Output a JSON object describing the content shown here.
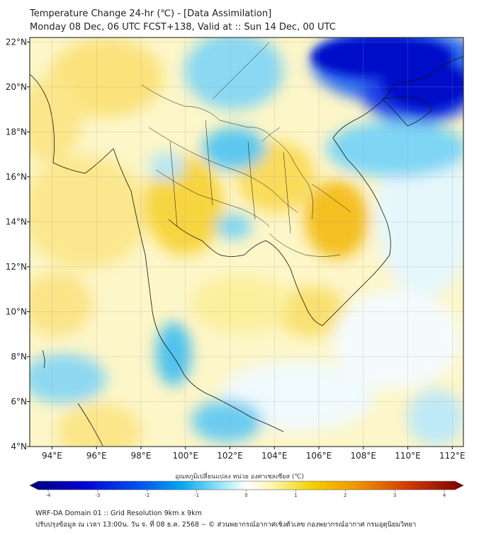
{
  "title": {
    "line1": "Temperature Change 24-hr (℃) - [Data Assimilation]",
    "line2": "Monday 08 Dec, 06 UTC FCST+138, Valid at :: Sun 14 Dec, 00 UTC"
  },
  "map": {
    "lon_range": [
      93,
      112.5
    ],
    "lat_range": [
      4,
      22.2
    ],
    "lon_ticks": [
      "94°E",
      "96°E",
      "98°E",
      "100°E",
      "102°E",
      "104°E",
      "106°E",
      "108°E",
      "110°E",
      "112°E"
    ],
    "lat_ticks": [
      "22°N",
      "20°N",
      "18°N",
      "16°N",
      "14°N",
      "12°N",
      "10°N",
      "8°N",
      "6°N",
      "4°N"
    ],
    "grid": true
  },
  "colorbar": {
    "label": "อุณหภูมิเปลี่ยนแปลง หน่วย องศาเซลเซียส (℃)",
    "ticks": [
      "-4",
      "-3",
      "-2",
      "-1",
      "0",
      "1",
      "2",
      "3",
      "4"
    ],
    "colors": [
      "#00007a",
      "#0000d0",
      "#0050f0",
      "#00a8f0",
      "#40d8f0",
      "#ffffff",
      "#ffef80",
      "#f5c400",
      "#f08c00",
      "#d23c00",
      "#7a0000"
    ]
  },
  "footer": {
    "line1": "WRF-DA Domain 01 :: Grid Resolution 9km x 9km",
    "line2": "ปรับปรุงข้อมูล ณ เวลา 13:00น. วัน จ. ที่ 08 ธ.ค. 2568 -- © ส่วนพยากรณ์อากาศเชิงตัวเลข กองพยากรณ์อากาศ กรมอุตุนิยมวิทยา"
  }
}
